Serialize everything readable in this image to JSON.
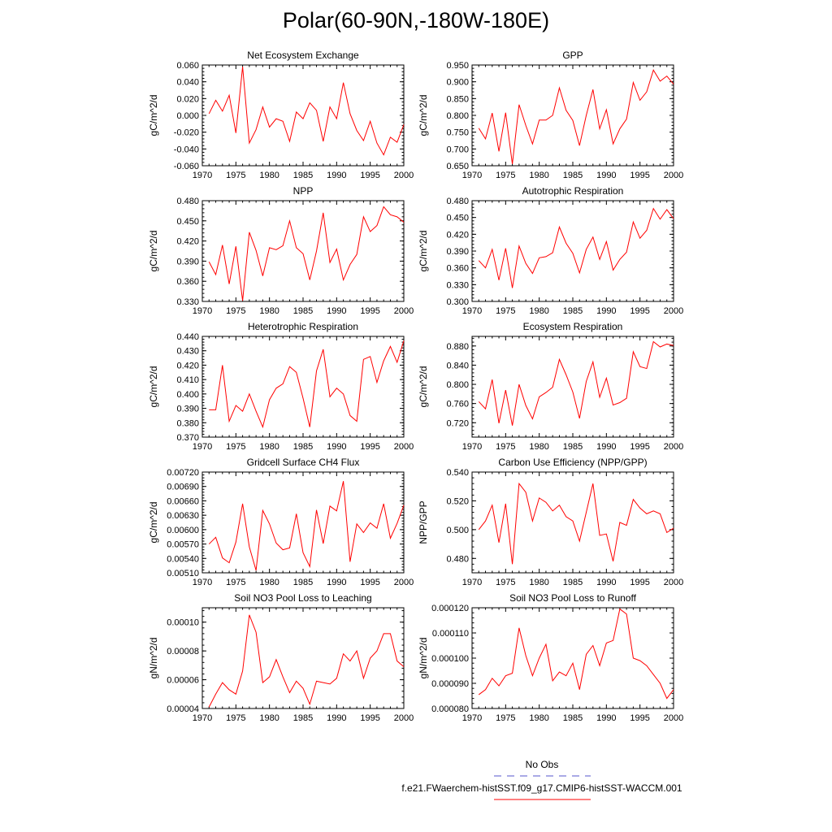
{
  "title": "Polar(60-90N,-180W-180E)",
  "colors": {
    "model_line": "#ff0000",
    "obs_line": "#5555cc",
    "axis": "#000000"
  },
  "legend": {
    "items": [
      {
        "label": "No Obs",
        "style": "dashed",
        "color": "#5555cc"
      },
      {
        "label": "f.e21.FWaerchem-histSST.f09_g17.CMIP6-histSST-WACCM.001",
        "style": "solid",
        "color": "#ff0000"
      }
    ]
  },
  "chart_data": [
    {
      "type": "line",
      "title": "Net Ecosystem Exchange",
      "xlabel": "",
      "ylabel": "gC/m^2/d",
      "xlim": [
        1970,
        2000
      ],
      "ylim": [
        -0.06,
        0.06
      ],
      "xticks": [
        "1970",
        "1975",
        "1980",
        "1985",
        "1990",
        "1995",
        "2000"
      ],
      "yticks": [
        "-0.060",
        "-0.040",
        "-0.020",
        "0.000",
        "0.020",
        "0.040",
        "0.060"
      ],
      "x": [
        1971,
        1972,
        1973,
        1974,
        1975,
        1976,
        1977,
        1978,
        1979,
        1980,
        1981,
        1982,
        1983,
        1984,
        1985,
        1986,
        1987,
        1988,
        1989,
        1990,
        1991,
        1992,
        1993,
        1994,
        1995,
        1996,
        1997,
        1998,
        1999,
        2000
      ],
      "series": [
        {
          "values": [
            0.002,
            0.018,
            0.005,
            0.024,
            -0.021,
            0.058,
            -0.033,
            -0.017,
            0.01,
            -0.014,
            -0.004,
            -0.007,
            -0.031,
            0.004,
            -0.004,
            0.015,
            0.006,
            -0.031,
            0.01,
            -0.004,
            0.039,
            0.002,
            -0.018,
            -0.03,
            -0.007,
            -0.033,
            -0.047,
            -0.026,
            -0.032,
            -0.011
          ]
        }
      ]
    },
    {
      "type": "line",
      "title": "GPP",
      "xlabel": "",
      "ylabel": "gC/m^2/d",
      "xlim": [
        1970,
        2000
      ],
      "ylim": [
        0.65,
        0.95
      ],
      "xticks": [
        "1970",
        "1975",
        "1980",
        "1985",
        "1990",
        "1995",
        "2000"
      ],
      "yticks": [
        "0.650",
        "0.700",
        "0.750",
        "0.800",
        "0.850",
        "0.900",
        "0.950"
      ],
      "x": [
        1971,
        1972,
        1973,
        1974,
        1975,
        1976,
        1977,
        1978,
        1979,
        1980,
        1981,
        1982,
        1983,
        1984,
        1985,
        1986,
        1987,
        1988,
        1989,
        1990,
        1991,
        1992,
        1993,
        1994,
        1995,
        1996,
        1997,
        1998,
        1999,
        2000
      ],
      "series": [
        {
          "values": [
            0.762,
            0.73,
            0.807,
            0.693,
            0.808,
            0.655,
            0.832,
            0.77,
            0.715,
            0.786,
            0.786,
            0.8,
            0.882,
            0.815,
            0.785,
            0.71,
            0.8,
            0.877,
            0.76,
            0.817,
            0.715,
            0.76,
            0.789,
            0.898,
            0.845,
            0.87,
            0.935,
            0.902,
            0.917,
            0.893
          ]
        }
      ]
    },
    {
      "type": "line",
      "title": "NPP",
      "xlabel": "",
      "ylabel": "gC/m^2/d",
      "xlim": [
        1970,
        2000
      ],
      "ylim": [
        0.33,
        0.48
      ],
      "xticks": [
        "1970",
        "1975",
        "1980",
        "1985",
        "1990",
        "1995",
        "2000"
      ],
      "yticks": [
        "0.330",
        "0.360",
        "0.390",
        "0.420",
        "0.450",
        "0.480"
      ],
      "x": [
        1971,
        1972,
        1973,
        1974,
        1975,
        1976,
        1977,
        1978,
        1979,
        1980,
        1981,
        1982,
        1983,
        1984,
        1985,
        1986,
        1987,
        1988,
        1989,
        1990,
        1991,
        1992,
        1993,
        1994,
        1995,
        1996,
        1997,
        1998,
        1999,
        2000
      ],
      "series": [
        {
          "values": [
            0.389,
            0.37,
            0.414,
            0.356,
            0.412,
            0.331,
            0.433,
            0.406,
            0.368,
            0.41,
            0.407,
            0.413,
            0.45,
            0.41,
            0.401,
            0.362,
            0.405,
            0.462,
            0.388,
            0.408,
            0.362,
            0.385,
            0.4,
            0.456,
            0.434,
            0.443,
            0.471,
            0.459,
            0.456,
            0.448
          ]
        }
      ]
    },
    {
      "type": "line",
      "title": "Autotrophic Respiration",
      "xlabel": "",
      "ylabel": "gC/m^2/d",
      "xlim": [
        1970,
        2000
      ],
      "ylim": [
        0.3,
        0.48
      ],
      "xticks": [
        "1970",
        "1975",
        "1980",
        "1985",
        "1990",
        "1995",
        "2000"
      ],
      "yticks": [
        "0.300",
        "0.330",
        "0.360",
        "0.390",
        "0.420",
        "0.450",
        "0.480"
      ],
      "x": [
        1971,
        1972,
        1973,
        1974,
        1975,
        1976,
        1977,
        1978,
        1979,
        1980,
        1981,
        1982,
        1983,
        1984,
        1985,
        1986,
        1987,
        1988,
        1989,
        1990,
        1991,
        1992,
        1993,
        1994,
        1995,
        1996,
        1997,
        1998,
        1999,
        2000
      ],
      "series": [
        {
          "values": [
            0.373,
            0.36,
            0.393,
            0.338,
            0.395,
            0.324,
            0.399,
            0.368,
            0.35,
            0.378,
            0.38,
            0.387,
            0.433,
            0.404,
            0.386,
            0.351,
            0.393,
            0.415,
            0.375,
            0.407,
            0.356,
            0.375,
            0.388,
            0.442,
            0.413,
            0.427,
            0.466,
            0.447,
            0.464,
            0.448
          ]
        }
      ]
    },
    {
      "type": "line",
      "title": "Heterotrophic Respiration",
      "xlabel": "",
      "ylabel": "gC/m^2/d",
      "xlim": [
        1970,
        2000
      ],
      "ylim": [
        0.37,
        0.44
      ],
      "xticks": [
        "1970",
        "1975",
        "1980",
        "1985",
        "1990",
        "1995",
        "2000"
      ],
      "yticks": [
        "0.370",
        "0.380",
        "0.390",
        "0.400",
        "0.410",
        "0.420",
        "0.430",
        "0.440"
      ],
      "x": [
        1971,
        1972,
        1973,
        1974,
        1975,
        1976,
        1977,
        1978,
        1979,
        1980,
        1981,
        1982,
        1983,
        1984,
        1985,
        1986,
        1987,
        1988,
        1989,
        1990,
        1991,
        1992,
        1993,
        1994,
        1995,
        1996,
        1997,
        1998,
        1999,
        2000
      ],
      "series": [
        {
          "values": [
            0.389,
            0.389,
            0.42,
            0.381,
            0.392,
            0.388,
            0.4,
            0.388,
            0.377,
            0.396,
            0.404,
            0.407,
            0.419,
            0.415,
            0.397,
            0.377,
            0.416,
            0.431,
            0.398,
            0.404,
            0.4,
            0.385,
            0.381,
            0.424,
            0.426,
            0.408,
            0.423,
            0.433,
            0.422,
            0.437
          ]
        }
      ]
    },
    {
      "type": "line",
      "title": "Ecosystem Respiration",
      "xlabel": "",
      "ylabel": "gC/m^2/d",
      "xlim": [
        1970,
        2000
      ],
      "ylim": [
        0.69,
        0.9
      ],
      "xticks": [
        "1970",
        "1975",
        "1980",
        "1985",
        "1990",
        "1995",
        "2000"
      ],
      "yticks": [
        "0.720",
        "0.760",
        "0.800",
        "0.840",
        "0.880"
      ],
      "x": [
        1971,
        1972,
        1973,
        1974,
        1975,
        1976,
        1977,
        1978,
        1979,
        1980,
        1981,
        1982,
        1983,
        1984,
        1985,
        1986,
        1987,
        1988,
        1989,
        1990,
        1991,
        1992,
        1993,
        1994,
        1995,
        1996,
        1997,
        1998,
        1999,
        2000
      ],
      "series": [
        {
          "values": [
            0.764,
            0.749,
            0.81,
            0.719,
            0.788,
            0.714,
            0.8,
            0.756,
            0.728,
            0.774,
            0.783,
            0.794,
            0.852,
            0.82,
            0.784,
            0.729,
            0.806,
            0.847,
            0.773,
            0.813,
            0.757,
            0.762,
            0.771,
            0.868,
            0.837,
            0.833,
            0.889,
            0.878,
            0.884,
            0.881
          ]
        }
      ]
    },
    {
      "type": "line",
      "title": "Gridcell Surface CH4 Flux",
      "xlabel": "",
      "ylabel": "gC/m^2/d",
      "xlim": [
        1970,
        2000
      ],
      "ylim": [
        0.0051,
        0.0072
      ],
      "xticks": [
        "1970",
        "1975",
        "1980",
        "1985",
        "1990",
        "1995",
        "2000"
      ],
      "yticks": [
        "0.00510",
        "0.00540",
        "0.00570",
        "0.00600",
        "0.00630",
        "0.00660",
        "0.00690",
        "0.00720"
      ],
      "x": [
        1971,
        1972,
        1973,
        1974,
        1975,
        1976,
        1977,
        1978,
        1979,
        1980,
        1981,
        1982,
        1983,
        1984,
        1985,
        1986,
        1987,
        1988,
        1989,
        1990,
        1991,
        1992,
        1993,
        1994,
        1995,
        1996,
        1997,
        1998,
        1999,
        2000
      ],
      "series": [
        {
          "values": [
            0.0057,
            0.00584,
            0.00541,
            0.00531,
            0.00574,
            0.00654,
            0.00564,
            0.00515,
            0.0064,
            0.00612,
            0.00572,
            0.00558,
            0.00562,
            0.00633,
            0.00552,
            0.00523,
            0.00641,
            0.00571,
            0.00649,
            0.00639,
            0.00701,
            0.00533,
            0.00612,
            0.00594,
            0.00614,
            0.00603,
            0.00654,
            0.00582,
            0.00613,
            0.00651
          ]
        }
      ]
    },
    {
      "type": "line",
      "title": "Carbon Use Efficiency (NPP/GPP)",
      "xlabel": "",
      "ylabel": "NPP/GPP",
      "xlim": [
        1970,
        2000
      ],
      "ylim": [
        0.47,
        0.54
      ],
      "xticks": [
        "1970",
        "1975",
        "1980",
        "1985",
        "1990",
        "1995",
        "2000"
      ],
      "yticks": [
        "0.480",
        "0.500",
        "0.520",
        "0.540"
      ],
      "x": [
        1971,
        1972,
        1973,
        1974,
        1975,
        1976,
        1977,
        1978,
        1979,
        1980,
        1981,
        1982,
        1983,
        1984,
        1985,
        1986,
        1987,
        1988,
        1989,
        1990,
        1991,
        1992,
        1993,
        1994,
        1995,
        1996,
        1997,
        1998,
        1999,
        2000
      ],
      "series": [
        {
          "values": [
            0.5,
            0.506,
            0.517,
            0.491,
            0.518,
            0.476,
            0.532,
            0.526,
            0.506,
            0.522,
            0.519,
            0.513,
            0.517,
            0.509,
            0.506,
            0.492,
            0.512,
            0.532,
            0.496,
            0.497,
            0.478,
            0.505,
            0.503,
            0.521,
            0.515,
            0.511,
            0.513,
            0.511,
            0.498,
            0.501
          ]
        }
      ]
    },
    {
      "type": "line",
      "title": "Soil NO3 Pool Loss to Leaching",
      "xlabel": "",
      "ylabel": "gN/m^2/d",
      "xlim": [
        1970,
        2000
      ],
      "ylim": [
        4e-05,
        0.00011
      ],
      "xticks": [
        "1970",
        "1975",
        "1980",
        "1985",
        "1990",
        "1995",
        "2000"
      ],
      "yticks": [
        "0.00004",
        "0.00006",
        "0.00008",
        "0.00010"
      ],
      "x": [
        1971,
        1972,
        1973,
        1974,
        1975,
        1976,
        1977,
        1978,
        1979,
        1980,
        1981,
        1982,
        1983,
        1984,
        1985,
        1986,
        1987,
        1988,
        1989,
        1990,
        1991,
        1992,
        1993,
        1994,
        1995,
        1996,
        1997,
        1998,
        1999,
        2000
      ],
      "series": [
        {
          "values": [
            4.1e-05,
            5e-05,
            5.8e-05,
            5.3e-05,
            5e-05,
            6.6e-05,
            0.000105,
            9.3e-05,
            5.8e-05,
            6.2e-05,
            7.4e-05,
            6.2e-05,
            5.1e-05,
            5.9e-05,
            5.4e-05,
            4.3e-05,
            5.9e-05,
            5.8e-05,
            5.7e-05,
            6.1e-05,
            7.8e-05,
            7.3e-05,
            8e-05,
            6.1e-05,
            7.5e-05,
            8e-05,
            9.2e-05,
            9.2e-05,
            7.3e-05,
            6.9e-05
          ]
        }
      ]
    },
    {
      "type": "line",
      "title": "Soil NO3 Pool Loss to Runoff",
      "xlabel": "",
      "ylabel": "gN/m^2/d",
      "xlim": [
        1970,
        2000
      ],
      "ylim": [
        8e-05,
        0.00012
      ],
      "xticks": [
        "1970",
        "1975",
        "1980",
        "1985",
        "1990",
        "1995",
        "2000"
      ],
      "yticks": [
        "0.000080",
        "0.000090",
        "0.000100",
        "0.000110",
        "0.000120"
      ],
      "x": [
        1971,
        1972,
        1973,
        1974,
        1975,
        1976,
        1977,
        1978,
        1979,
        1980,
        1981,
        1982,
        1983,
        1984,
        1985,
        1986,
        1987,
        1988,
        1989,
        1990,
        1991,
        1992,
        1993,
        1994,
        1995,
        1996,
        1997,
        1998,
        1999,
        2000
      ],
      "series": [
        {
          "values": [
            8.55e-05,
            8.75e-05,
            9.2e-05,
            8.9e-05,
            9.3e-05,
            9.4e-05,
            0.000112,
            0.000101,
            9.3e-05,
            0.0001,
            0.0001055,
            9.1e-05,
            9.45e-05,
            9.3e-05,
            9.8e-05,
            8.75e-05,
            0.0001015,
            0.000105,
            9.7e-05,
            0.000106,
            0.000107,
            0.0001195,
            0.0001175,
            0.0001,
            9.9e-05,
            9.7e-05,
            9.35e-05,
            9e-05,
            8.4e-05,
            8.75e-05
          ]
        }
      ]
    }
  ]
}
